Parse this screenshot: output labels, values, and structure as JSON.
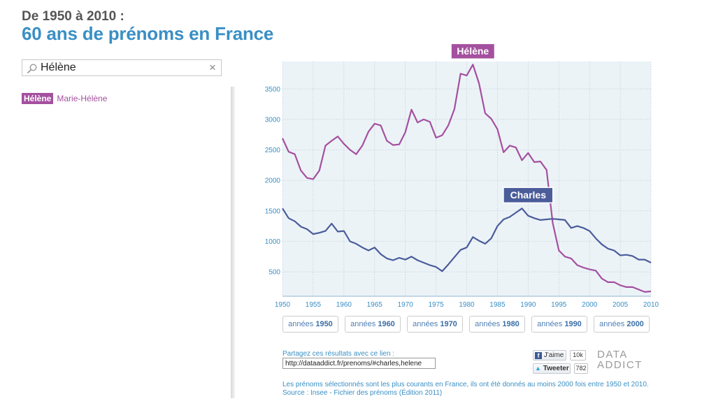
{
  "header": {
    "kicker": "De 1950 à 2010 :",
    "title": "60 ans de prénoms en France"
  },
  "search": {
    "value": "Hélène",
    "clear_glyph": "×"
  },
  "name_chips": {
    "selected": "Hélène",
    "others": [
      "Marie-Hélène"
    ]
  },
  "decade_buttons": [
    {
      "prefix": "années",
      "year": "1950"
    },
    {
      "prefix": "années",
      "year": "1960"
    },
    {
      "prefix": "années",
      "year": "1970"
    },
    {
      "prefix": "années",
      "year": "1980"
    },
    {
      "prefix": "années",
      "year": "1990"
    },
    {
      "prefix": "années",
      "year": "2000"
    }
  ],
  "share": {
    "label": "Partagez ces résultats avec ce lien :",
    "link": "http://dataaddict.fr/prenoms/#charles,helene"
  },
  "social": {
    "facebook_label": "J'aime",
    "facebook_count": "10k",
    "twitter_label": "Tweeter",
    "twitter_count": "782"
  },
  "brand": {
    "line1": "DATA",
    "line2": "ADDICT"
  },
  "footer": {
    "note": "Les prénoms sélectionnés sont les plus courants en France, ils ont été donnés au moins 2000 fois entre 1950 et 2010.",
    "source": "Source : Insee - Fichier des prénoms (Édition 2011)"
  },
  "colors": {
    "helene": "#a4509f",
    "charles": "#4a5c9a",
    "plot_bg": "#ecf3f7",
    "accent": "#3a8fc4"
  },
  "chart_data": {
    "type": "line",
    "title": "",
    "xlabel": "",
    "ylabel": "",
    "xlim": [
      1950,
      2010
    ],
    "ylim": [
      100,
      3950
    ],
    "grid": true,
    "x_ticks": [
      1950,
      1955,
      1960,
      1965,
      1970,
      1975,
      1980,
      1985,
      1990,
      1995,
      2000,
      2005,
      2010
    ],
    "y_ticks": [
      500,
      1000,
      1500,
      2000,
      2500,
      3000,
      3500
    ],
    "x": [
      1950,
      1951,
      1952,
      1953,
      1954,
      1955,
      1956,
      1957,
      1958,
      1959,
      1960,
      1961,
      1962,
      1963,
      1964,
      1965,
      1966,
      1967,
      1968,
      1969,
      1970,
      1971,
      1972,
      1973,
      1974,
      1975,
      1976,
      1977,
      1978,
      1979,
      1980,
      1981,
      1982,
      1983,
      1984,
      1985,
      1986,
      1987,
      1988,
      1989,
      1990,
      1991,
      1992,
      1993,
      1994,
      1995,
      1996,
      1997,
      1998,
      1999,
      2000,
      2001,
      2002,
      2003,
      2004,
      2005,
      2006,
      2007,
      2008,
      2009,
      2010
    ],
    "series": [
      {
        "name": "Hélène",
        "color": "#a4509f",
        "values": [
          2690,
          2470,
          2430,
          2160,
          2040,
          2020,
          2160,
          2570,
          2650,
          2720,
          2600,
          2500,
          2430,
          2570,
          2800,
          2930,
          2900,
          2650,
          2580,
          2590,
          2790,
          3160,
          2950,
          3000,
          2960,
          2700,
          2740,
          2900,
          3170,
          3750,
          3720,
          3900,
          3590,
          3100,
          3010,
          2840,
          2460,
          2570,
          2540,
          2330,
          2450,
          2300,
          2310,
          2170,
          1300,
          850,
          750,
          720,
          610,
          570,
          540,
          520,
          390,
          330,
          330,
          280,
          250,
          250,
          210,
          170,
          180
        ]
      },
      {
        "name": "Charles",
        "color": "#4a5c9a",
        "values": [
          1540,
          1380,
          1330,
          1240,
          1200,
          1120,
          1140,
          1170,
          1290,
          1160,
          1170,
          1000,
          960,
          900,
          850,
          900,
          790,
          720,
          690,
          730,
          700,
          750,
          690,
          650,
          610,
          580,
          510,
          620,
          740,
          860,
          900,
          1070,
          1010,
          960,
          1050,
          1250,
          1360,
          1400,
          1470,
          1540,
          1420,
          1380,
          1350,
          1360,
          1370,
          1360,
          1350,
          1220,
          1250,
          1220,
          1170,
          1050,
          950,
          880,
          850,
          770,
          780,
          760,
          700,
          700,
          650
        ]
      }
    ],
    "annotations": [
      {
        "text": "Hélène",
        "x": 1981,
        "y": 3900,
        "series": 0
      },
      {
        "text": "Charles",
        "x": 1990,
        "y": 1540,
        "series": 1
      }
    ]
  }
}
